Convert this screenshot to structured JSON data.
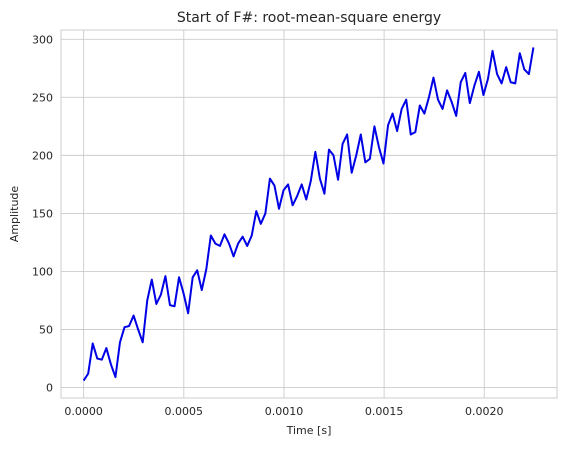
{
  "chart_data": {
    "type": "line",
    "title": "Start of F#: root-mean-square energy",
    "xlabel": "Time [s]",
    "ylabel": "Amplitude",
    "xlim": [
      -0.000113,
      0.002363
    ],
    "ylim": [
      -9,
      308
    ],
    "xticks": [
      0.0,
      0.0005,
      0.001,
      0.0015,
      0.002
    ],
    "xtick_labels": [
      "0.0000",
      "0.0005",
      "0.0010",
      "0.0015",
      "0.0020"
    ],
    "yticks": [
      0,
      50,
      100,
      150,
      200,
      250,
      300
    ],
    "ytick_labels": [
      "0",
      "50",
      "100",
      "150",
      "200",
      "250",
      "300"
    ],
    "grid": true,
    "color": "#0000e6",
    "x_start": 0.0,
    "x_step": 2.268e-05,
    "values": [
      6,
      12,
      38,
      25,
      24,
      34,
      20,
      9,
      39,
      52,
      53,
      62,
      50,
      39,
      75,
      93,
      72,
      80,
      96,
      71,
      70,
      95,
      81,
      64,
      95,
      101,
      84,
      102,
      131,
      124,
      122,
      132,
      124,
      113,
      124,
      130,
      122,
      131,
      152,
      141,
      150,
      180,
      174,
      154,
      170,
      175,
      157,
      165,
      175,
      162,
      178,
      203,
      180,
      167,
      205,
      200,
      179,
      210,
      218,
      185,
      200,
      218,
      194,
      197,
      225,
      207,
      193,
      226,
      236,
      221,
      240,
      248,
      218,
      220,
      243,
      236,
      250,
      267,
      248,
      240,
      256,
      246,
      234,
      263,
      271,
      245,
      260,
      272,
      252,
      266,
      290,
      270,
      262,
      276,
      263,
      262,
      288,
      274,
      270,
      293
    ]
  }
}
